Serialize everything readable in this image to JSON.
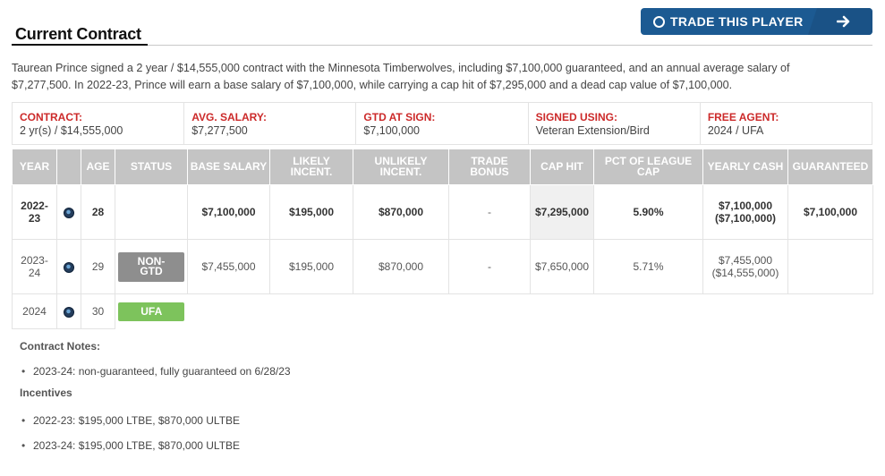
{
  "header": {
    "title": "Current Contract",
    "trade_button": "TRADE THIS PLAYER"
  },
  "description": "Taurean Prince signed a 2 year / $14,555,000 contract with the Minnesota Timberwolves, including $7,100,000 guaranteed, and an annual average salary of $7,277,500. In 2022-23, Prince will earn a base salary of $7,100,000, while carrying a cap hit of $7,295,000 and a dead cap value of $7,100,000.",
  "summary": [
    {
      "label": "CONTRACT:",
      "value": "2 yr(s) / $14,555,000"
    },
    {
      "label": "AVG. SALARY:",
      "value": "$7,277,500"
    },
    {
      "label": "GTD AT SIGN:",
      "value": "$7,100,000"
    },
    {
      "label": "SIGNED USING:",
      "value": "Veteran Extension/Bird"
    },
    {
      "label": "FREE AGENT:",
      "value": "2024 / UFA"
    }
  ],
  "table": {
    "headers": {
      "year": "YEAR",
      "age": "AGE",
      "status": "STATUS",
      "base_salary": "BASE SALARY",
      "likely_incent": "LIKELY INCENT.",
      "unlikely_incent": "UNLIKELY INCENT.",
      "trade_bonus": "TRADE BONUS",
      "cap_hit": "CAP HIT",
      "pct_league_cap": "PCT OF LEAGUE CAP",
      "yearly_cash": "YEARLY CASH",
      "guaranteed": "GUARANTEED"
    },
    "rows": [
      {
        "year_a": "2022-",
        "year_b": "23",
        "team_icon": "timberwolves-logo-icon",
        "age": "28",
        "status": "",
        "base_salary": "$7,100,000",
        "likely_incent": "$195,000",
        "unlikely_incent": "$870,000",
        "trade_bonus": "-",
        "cap_hit": "$7,295,000",
        "pct_league_cap": "5.90%",
        "yearly_cash_a": "$7,100,000",
        "yearly_cash_b": "($7,100,000)",
        "guaranteed": "$7,100,000"
      },
      {
        "year_a": "2023-",
        "year_b": "24",
        "team_icon": "timberwolves-logo-icon",
        "age": "29",
        "status_a": "NON-",
        "status_b": "GTD",
        "base_salary": "$7,455,000",
        "likely_incent": "$195,000",
        "unlikely_incent": "$870,000",
        "trade_bonus": "-",
        "cap_hit": "$7,650,000",
        "pct_league_cap": "5.71%",
        "yearly_cash_a": "$7,455,000",
        "yearly_cash_b": "($14,555,000)",
        "guaranteed": ""
      },
      {
        "year": "2024",
        "team_icon": "timberwolves-logo-icon",
        "age": "30",
        "status": "UFA"
      }
    ]
  },
  "notes": {
    "contract_title": "Contract Notes:",
    "contract_items": [
      "2023-24: non-guaranteed, fully guaranteed on 6/28/23"
    ],
    "incentives_title": "Incentives",
    "incentive_items": [
      "2022-23: $195,000 LTBE, $870,000 ULTBE",
      "2023-24: $195,000 LTBE, $870,000 ULTBE"
    ]
  },
  "colors": {
    "trade_button": "#1c5a92",
    "summary_label": "#cc2a2a",
    "table_header": "#c4c4c4",
    "status_non_gtd": "#8e8e8e",
    "status_ufa": "#7dc35c"
  }
}
